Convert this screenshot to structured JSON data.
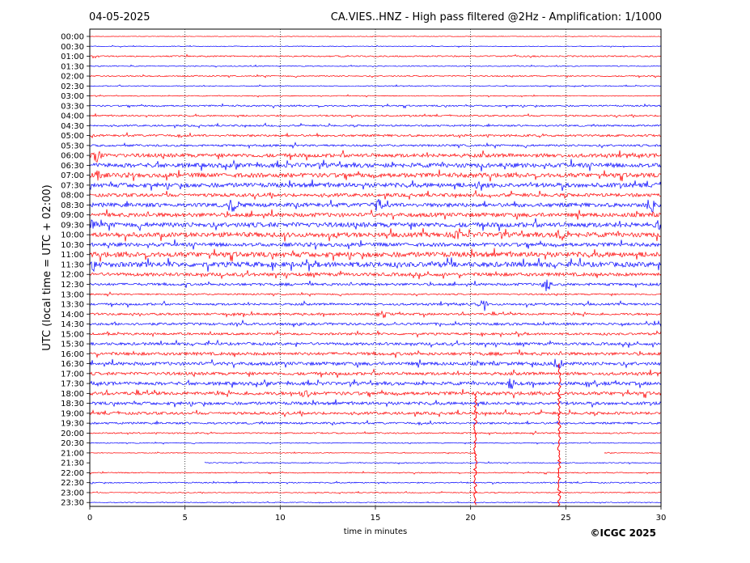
{
  "chart_data": {
    "type": "line",
    "date": "04-05-2025",
    "title": "CA.VIES..HNZ - High pass filtered @2Hz - Amplification: 1/1000",
    "xlabel": "time in minutes",
    "ylabel": "UTC (local time = UTC + 02:00)",
    "copyright": "©ICGC 2025",
    "xlim": [
      0,
      30
    ],
    "x_ticks": [
      0,
      5,
      10,
      15,
      20,
      25,
      30
    ],
    "x_tick_labels": [
      "0",
      "5",
      "10",
      "15",
      "20",
      "25",
      "30"
    ],
    "grid_x": [
      5,
      10,
      15,
      20,
      25
    ],
    "row_labels": [
      "00:00",
      "00:30",
      "01:00",
      "01:30",
      "02:00",
      "02:30",
      "03:00",
      "03:30",
      "04:00",
      "04:30",
      "05:00",
      "05:30",
      "06:00",
      "06:30",
      "07:00",
      "07:30",
      "08:00",
      "08:30",
      "09:00",
      "09:30",
      "10:00",
      "10:30",
      "11:00",
      "11:30",
      "12:00",
      "12:30",
      "13:00",
      "13:30",
      "14:00",
      "14:30",
      "15:00",
      "15:30",
      "16:00",
      "16:30",
      "17:00",
      "17:30",
      "18:00",
      "18:30",
      "19:00",
      "19:30",
      "20:00",
      "20:30",
      "21:00",
      "21:30",
      "22:00",
      "22:30",
      "23:00",
      "23:30"
    ],
    "row_noise": [
      0.3,
      0.4,
      0.8,
      0.5,
      0.7,
      0.5,
      0.5,
      0.9,
      0.9,
      1.0,
      1.3,
      1.2,
      2.2,
      2.6,
      2.6,
      2.6,
      2.0,
      2.4,
      2.4,
      2.8,
      2.8,
      2.2,
      3.0,
      3.0,
      2.0,
      1.5,
      0.9,
      1.3,
      1.3,
      1.5,
      1.3,
      1.6,
      1.8,
      2.0,
      1.8,
      2.0,
      2.0,
      1.8,
      1.6,
      1.2,
      0.8,
      0.5,
      0.4,
      0.5,
      0.6,
      0.7,
      0.5,
      0.5
    ],
    "series": [
      {
        "color": "#ff0000",
        "rows": "even"
      },
      {
        "color": "#0000ff",
        "rows": "odd"
      }
    ],
    "events": [
      {
        "row": 12,
        "minute": 0.35,
        "amp": 12
      },
      {
        "row": 14,
        "minute": 0.4,
        "amp": 8
      },
      {
        "row": 15,
        "minute": 20.5,
        "amp": 9
      },
      {
        "row": 17,
        "minute": 7.5,
        "amp": 8
      },
      {
        "row": 17,
        "minute": 15.1,
        "amp": 8
      },
      {
        "row": 17,
        "minute": 29.5,
        "amp": 12
      },
      {
        "row": 19,
        "minute": 0.1,
        "amp": 8
      },
      {
        "row": 19,
        "minute": 30.0,
        "amp": 10
      },
      {
        "row": 20,
        "minute": 19.3,
        "amp": 9
      },
      {
        "row": 20,
        "minute": 24.7,
        "amp": 8
      },
      {
        "row": 23,
        "minute": 0.2,
        "amp": 9
      },
      {
        "row": 25,
        "minute": 24.0,
        "amp": 9
      },
      {
        "row": 27,
        "minute": 20.6,
        "amp": 9
      },
      {
        "row": 28,
        "minute": 15.4,
        "amp": 7
      },
      {
        "row": 33,
        "minute": 24.6,
        "amp": 8
      },
      {
        "row": 35,
        "minute": 22.1,
        "amp": 7
      },
      {
        "row": 36,
        "minute": 11.3,
        "amp": 7
      }
    ],
    "spikes": [
      {
        "start_row": 36,
        "end_row": 47,
        "minute": 20.25,
        "color": "#ff0000"
      },
      {
        "start_row": 33,
        "end_row": 47,
        "minute": 24.65,
        "color": "#ff0000"
      }
    ],
    "gaps": [
      {
        "row": 42,
        "from_minute": 20.3,
        "to_minute": 27.0
      },
      {
        "row": 43,
        "from_minute": 0.0,
        "to_minute": 6.0
      }
    ]
  }
}
